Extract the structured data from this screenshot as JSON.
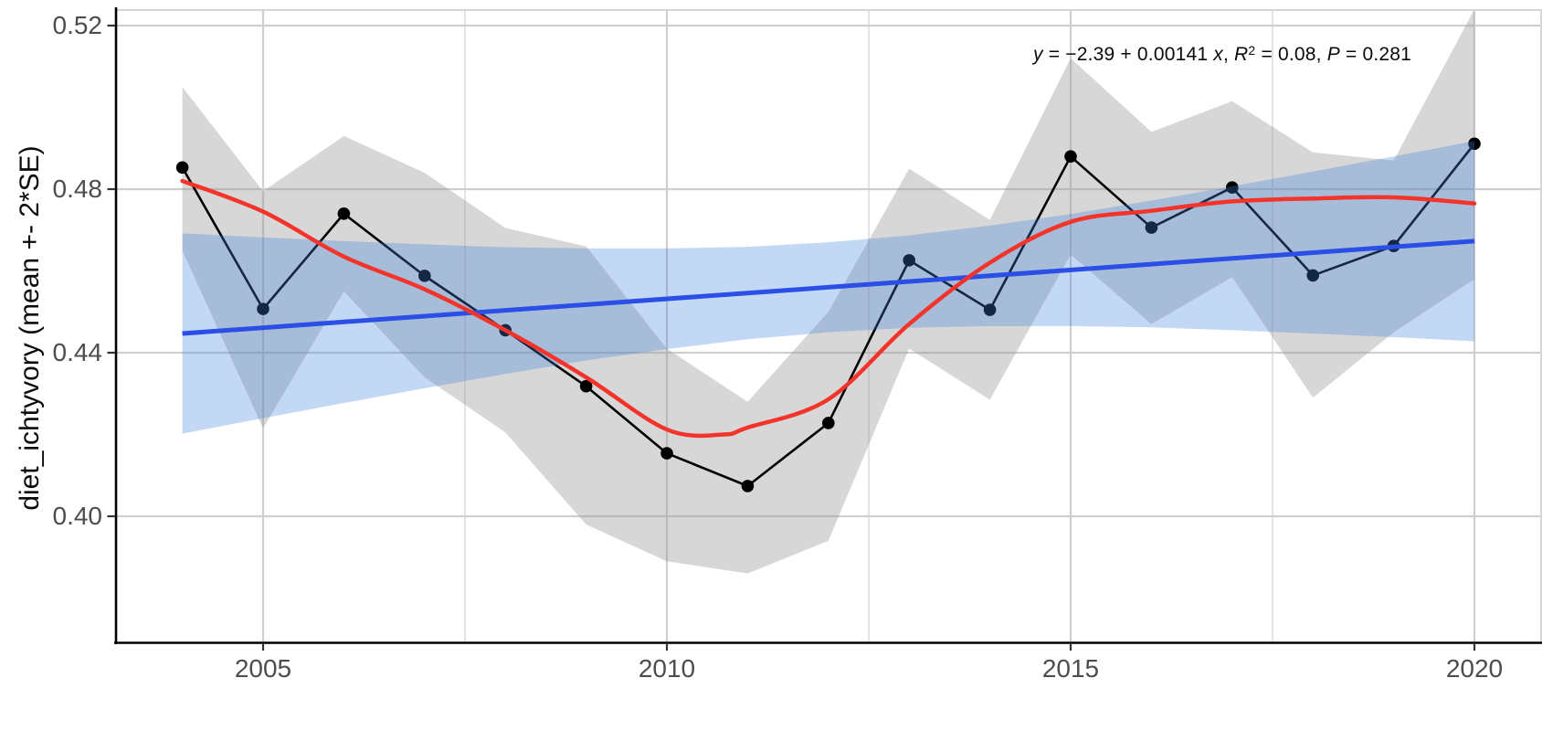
{
  "chart_data": {
    "type": "line",
    "title": "",
    "xlabel": "",
    "ylabel": "diet_ichtyvory (mean +- 2*SE)",
    "x_ticks": [
      2005,
      2010,
      2015,
      2020
    ],
    "x_minor_ticks": [
      2007.5,
      2012.5,
      2017.5
    ],
    "y_ticks": [
      0.52,
      0.48,
      0.44,
      0.4
    ],
    "x_range_years": [
      2003.17,
      2020.84
    ],
    "y_range": [
      0.3692,
      0.524
    ],
    "grid": "major-x, major-y, minor-x",
    "legend_position": "none",
    "years": [
      2004,
      2005,
      2006,
      2007,
      2008,
      2009,
      2010,
      2011,
      2012,
      2013,
      2014,
      2015,
      2016,
      2017,
      2018,
      2019,
      2020
    ],
    "mean": [
      0.4853,
      0.4507,
      0.474,
      0.4588,
      0.4455,
      0.4318,
      0.4154,
      0.4074,
      0.4228,
      0.4626,
      0.4505,
      0.488,
      0.4706,
      0.4804,
      0.4589,
      0.4661,
      0.4911
    ],
    "se_ribbon_upper": [
      0.505,
      0.4795,
      0.493,
      0.484,
      0.4705,
      0.466,
      0.441,
      0.428,
      0.45,
      0.485,
      0.4725,
      0.512,
      0.494,
      0.5015,
      0.489,
      0.487,
      0.524
    ],
    "se_ribbon_lower": [
      0.465,
      0.4215,
      0.455,
      0.434,
      0.4205,
      0.398,
      0.389,
      0.386,
      0.394,
      0.441,
      0.4285,
      0.464,
      0.447,
      0.4585,
      0.429,
      0.445,
      0.458
    ],
    "lm_line": {
      "x": [
        2004,
        2020
      ],
      "y": [
        0.4447,
        0.4673
      ]
    },
    "lm_ci_upper": [
      0.4692,
      0.4682,
      0.4673,
      0.4665,
      0.4658,
      0.4655,
      0.4655,
      0.4659,
      0.467,
      0.4687,
      0.4711,
      0.4739,
      0.4772,
      0.4807,
      0.4843,
      0.488,
      0.4918
    ],
    "lm_ci_lower": [
      0.4202,
      0.424,
      0.4277,
      0.4313,
      0.4348,
      0.4381,
      0.4409,
      0.4433,
      0.445,
      0.4461,
      0.4465,
      0.4465,
      0.4462,
      0.4455,
      0.4447,
      0.4438,
      0.4428
    ],
    "loess": {
      "x": [
        2004,
        2005,
        2006,
        2007,
        2008,
        2009,
        2010,
        2010.7,
        2011,
        2012,
        2013,
        2014,
        2015,
        2016,
        2017,
        2018,
        2019,
        2020
      ],
      "y": [
        0.482,
        0.4745,
        0.4635,
        0.4555,
        0.4455,
        0.434,
        0.4212,
        0.42,
        0.4217,
        0.4286,
        0.447,
        0.462,
        0.472,
        0.4747,
        0.477,
        0.4777,
        0.478,
        0.4765
      ]
    },
    "colors": {
      "points_line": "#000000",
      "se_ribbon": "rgba(150,150,150,0.38)",
      "lm_ci_ribbon": "rgba(60,130,220,0.31)",
      "lm_line": "#2b4ee6",
      "loess_line": "#f4342a",
      "grid_major": "#cfcfcf",
      "grid_minor": "#dddddd",
      "axis_line": "#000000",
      "tick_text": "#4d4d4d",
      "panel_border": "#d6d6d6"
    }
  },
  "y_axis": {
    "title": "diet_ichtyvory (mean +- 2*SE)",
    "tick_labels": [
      "0.52",
      "0.48",
      "0.44",
      "0.40"
    ]
  },
  "x_axis": {
    "tick_labels": [
      "2005",
      "2010",
      "2015",
      "2020"
    ]
  },
  "annotation": {
    "y_var": "y",
    "equation": " = −2.39 + 0.00141 ",
    "x_var": "x",
    "comma1": ", ",
    "r_var": "R",
    "r_sup": "2",
    "r_value": " = 0.08, ",
    "p_var": "P",
    "p_value": " = 0.281"
  }
}
